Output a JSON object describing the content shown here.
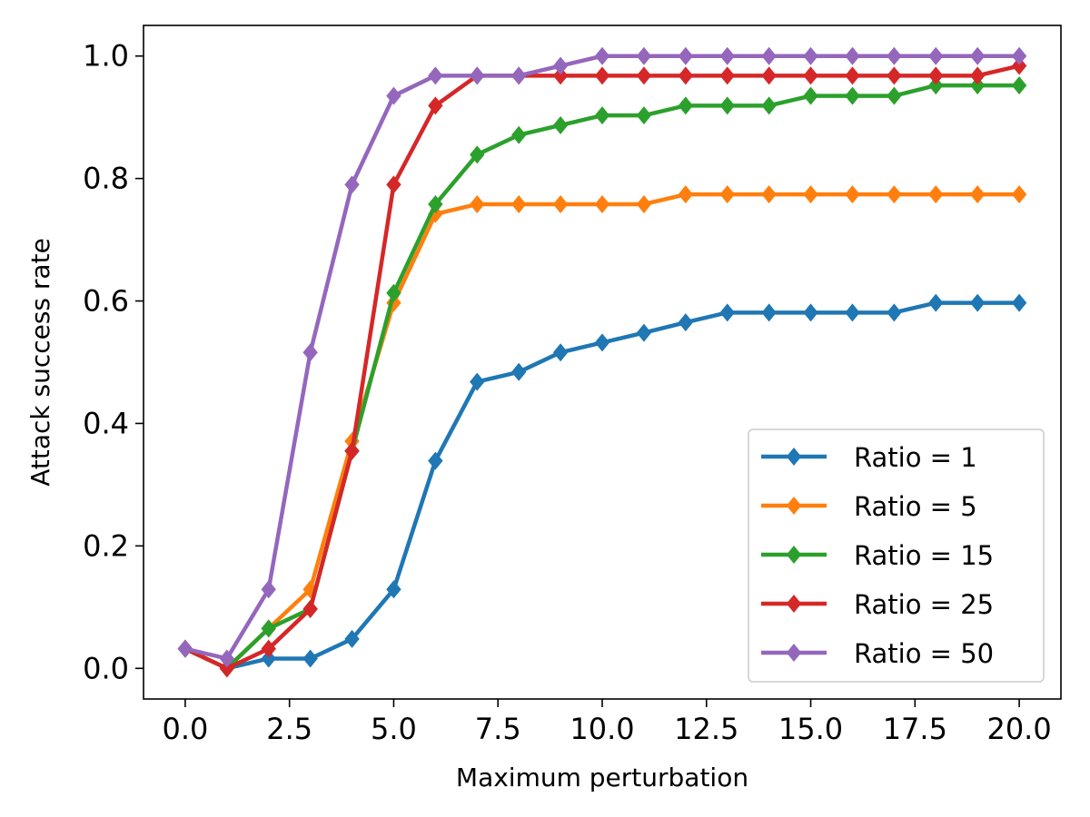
{
  "chart_data": {
    "type": "line",
    "title": "",
    "xlabel": "Maximum perturbation",
    "ylabel": "Attack success rate",
    "xlim": [
      -1,
      21
    ],
    "ylim": [
      -0.05,
      1.05
    ],
    "xticks": [
      0,
      2.5,
      5,
      7.5,
      10,
      12.5,
      15,
      17.5,
      20
    ],
    "xtick_labels": [
      "0.0",
      "2.5",
      "5.0",
      "7.5",
      "10.0",
      "12.5",
      "15.0",
      "17.5",
      "20.0"
    ],
    "yticks": [
      0,
      0.2,
      0.4,
      0.6,
      0.8,
      1.0
    ],
    "ytick_labels": [
      "0.0",
      "0.2",
      "0.4",
      "0.6",
      "0.8",
      "1.0"
    ],
    "grid": false,
    "legend_position": "lower-right",
    "marker": "diamond",
    "x": [
      0,
      1,
      2,
      3,
      4,
      5,
      6,
      7,
      8,
      9,
      10,
      11,
      12,
      13,
      14,
      15,
      16,
      17,
      18,
      19,
      20
    ],
    "series": [
      {
        "name": "Ratio = 1",
        "color": "#1f77b4",
        "values": [
          0.032,
          0.0,
          0.016,
          0.016,
          0.048,
          0.129,
          0.339,
          0.468,
          0.484,
          0.516,
          0.532,
          0.548,
          0.565,
          0.581,
          0.581,
          0.581,
          0.581,
          0.581,
          0.597,
          0.597,
          0.597
        ]
      },
      {
        "name": "Ratio = 5",
        "color": "#ff7f0e",
        "values": [
          0.032,
          0.0,
          0.065,
          0.129,
          0.371,
          0.597,
          0.742,
          0.758,
          0.758,
          0.758,
          0.758,
          0.758,
          0.774,
          0.774,
          0.774,
          0.774,
          0.774,
          0.774,
          0.774,
          0.774,
          0.774
        ]
      },
      {
        "name": "Ratio = 15",
        "color": "#2ca02c",
        "values": [
          0.032,
          0.0,
          0.065,
          0.097,
          0.355,
          0.613,
          0.758,
          0.839,
          0.871,
          0.887,
          0.903,
          0.903,
          0.919,
          0.919,
          0.919,
          0.935,
          0.935,
          0.935,
          0.952,
          0.952,
          0.952
        ]
      },
      {
        "name": "Ratio = 25",
        "color": "#d62728",
        "values": [
          0.032,
          0.0,
          0.032,
          0.097,
          0.355,
          0.79,
          0.919,
          0.968,
          0.968,
          0.968,
          0.968,
          0.968,
          0.968,
          0.968,
          0.968,
          0.968,
          0.968,
          0.968,
          0.968,
          0.968,
          0.984
        ]
      },
      {
        "name": "Ratio = 50",
        "color": "#9467bd",
        "values": [
          0.032,
          0.016,
          0.129,
          0.516,
          0.79,
          0.935,
          0.968,
          0.968,
          0.968,
          0.984,
          1.0,
          1.0,
          1.0,
          1.0,
          1.0,
          1.0,
          1.0,
          1.0,
          1.0,
          1.0,
          1.0
        ]
      }
    ]
  }
}
